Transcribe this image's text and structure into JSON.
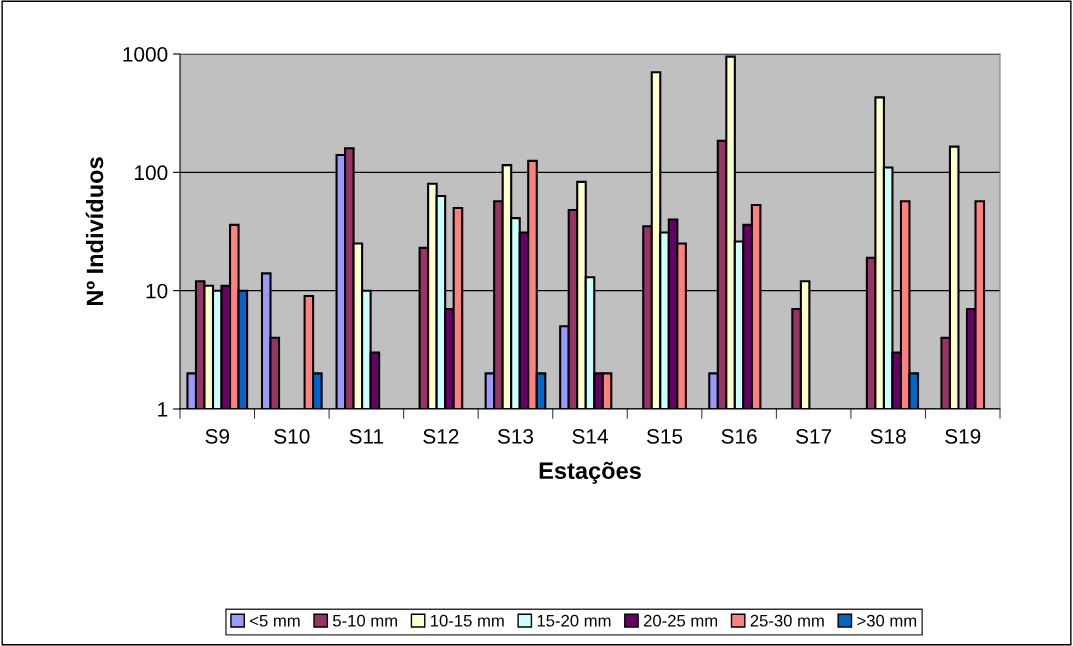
{
  "chart_data": {
    "type": "bar",
    "xlabel": "Estações",
    "ylabel": "Nº Indivíduos",
    "categories": [
      "S9",
      "S10",
      "S11",
      "S12",
      "S13",
      "S14",
      "S15",
      "S16",
      "S17",
      "S18",
      "S19"
    ],
    "series": [
      {
        "name": "<5 mm",
        "color": "#9999ff",
        "values": [
          2,
          14,
          140,
          null,
          2,
          5,
          null,
          2,
          null,
          null,
          null
        ]
      },
      {
        "name": "5-10 mm",
        "color": "#993366",
        "values": [
          12,
          4,
          160,
          23,
          57,
          48,
          35,
          185,
          7,
          19,
          4
        ]
      },
      {
        "name": "10-15 mm",
        "color": "#ffffcc",
        "values": [
          11,
          null,
          25,
          80,
          115,
          83,
          700,
          950,
          12,
          430,
          165
        ]
      },
      {
        "name": "15-20 mm",
        "color": "#ccffff",
        "values": [
          10,
          null,
          10,
          63,
          41,
          13,
          31,
          26,
          null,
          110,
          null
        ]
      },
      {
        "name": "20-25 mm",
        "color": "#660066",
        "values": [
          11,
          null,
          3,
          7,
          31,
          2,
          40,
          36,
          null,
          3,
          7
        ]
      },
      {
        "name": "25-30 mm",
        "color": "#ff8080",
        "values": [
          36,
          9,
          null,
          50,
          125,
          2,
          25,
          53,
          null,
          57,
          57
        ]
      },
      {
        "name": ">30 mm",
        "color": "#0066cc",
        "values": [
          10,
          2,
          null,
          null,
          2,
          null,
          null,
          null,
          null,
          2,
          null
        ]
      }
    ],
    "log": true,
    "ylim": [
      1,
      1000
    ],
    "yticks": [
      1,
      10,
      100,
      1000
    ],
    "grid": "y",
    "legend": "bottom"
  }
}
